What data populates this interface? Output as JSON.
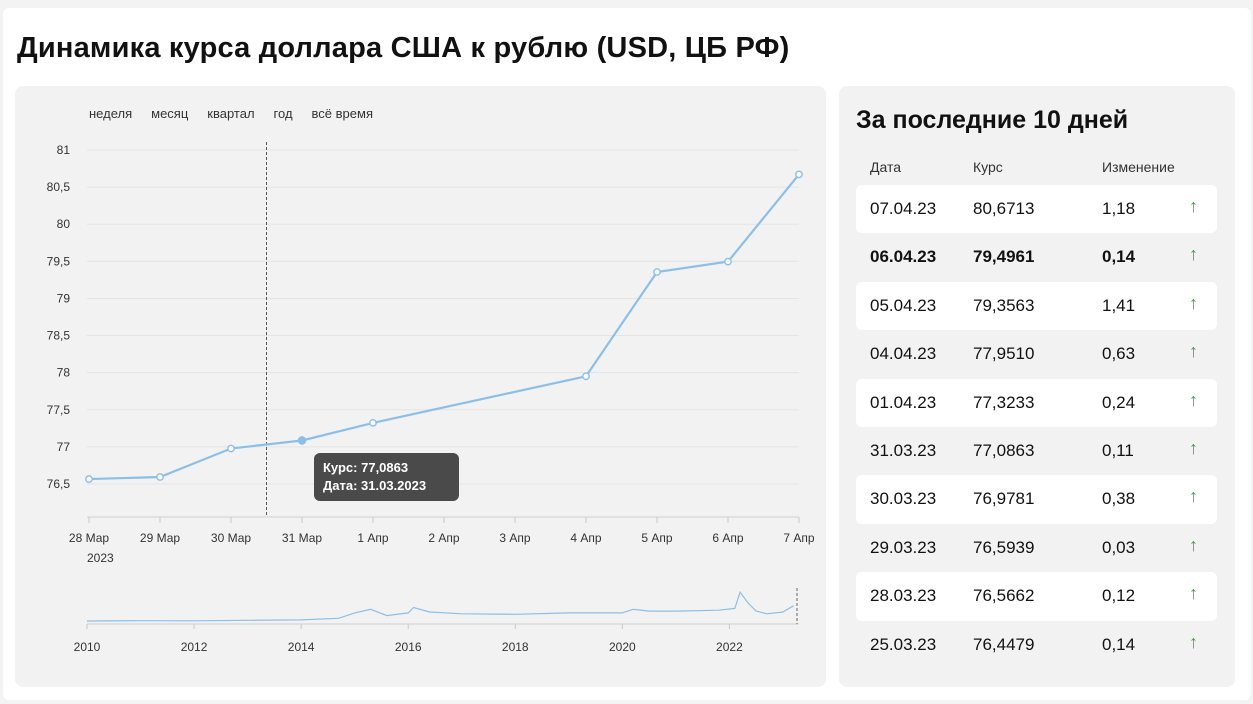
{
  "title": "Динамика курса доллара США к рублю (USD, ЦБ РФ)",
  "periods": [
    "неделя",
    "месяц",
    "квартал",
    "год",
    "всё время"
  ],
  "chart_data": {
    "type": "line",
    "x": [
      "28 Мар",
      "29 Мар",
      "30 Мар",
      "31 Мар",
      "1 Апр",
      "4 Апр",
      "5 Апр",
      "6 Апр",
      "7 Апр"
    ],
    "x_ticks": [
      "28 Мар",
      "29 Мар",
      "30 Мар",
      "31 Мар",
      "1 Апр",
      "2 Апр",
      "3 Апр",
      "4 Апр",
      "5 Апр",
      "6 Апр",
      "7 Апр"
    ],
    "x_year_label": "2023",
    "values": [
      76.5662,
      76.5939,
      76.9781,
      77.0863,
      77.3233,
      77.951,
      79.3563,
      79.4961,
      80.6713
    ],
    "y_ticks": [
      "81",
      "80,5",
      "80",
      "79,5",
      "79",
      "78,5",
      "78",
      "77,5",
      "77",
      "76,5"
    ],
    "ylim": [
      76.5,
      81
    ],
    "line_color": "#8cbfe8",
    "highlight": {
      "x": "31 Мар",
      "value": 77.0863
    },
    "overview": {
      "x_ticks": [
        "2010",
        "2012",
        "2014",
        "2016",
        "2018",
        "2020",
        "2022"
      ],
      "xlim": [
        2010,
        2023.3
      ]
    }
  },
  "tooltip": {
    "rate": "Курс: 77,0863",
    "date": "Дата: 31.03.2023"
  },
  "table": {
    "title": "За последние 10 дней",
    "headers": [
      "Дата",
      "Курс",
      "Изменение"
    ],
    "arrow_icon": "↑",
    "arrow_color": "#2eaa3a",
    "rows": [
      {
        "date": "07.04.23",
        "rate": "80,6713",
        "change": "1,18"
      },
      {
        "date": "06.04.23",
        "rate": "79,4961",
        "change": "0,14"
      },
      {
        "date": "05.04.23",
        "rate": "79,3563",
        "change": "1,41"
      },
      {
        "date": "04.04.23",
        "rate": "77,9510",
        "change": "0,63"
      },
      {
        "date": "01.04.23",
        "rate": "77,3233",
        "change": "0,24"
      },
      {
        "date": "31.03.23",
        "rate": "77,0863",
        "change": "0,11"
      },
      {
        "date": "30.03.23",
        "rate": "76,9781",
        "change": "0,38"
      },
      {
        "date": "29.03.23",
        "rate": "76,5939",
        "change": "0,03"
      },
      {
        "date": "28.03.23",
        "rate": "76,5662",
        "change": "0,12"
      },
      {
        "date": "25.03.23",
        "rate": "76,4479",
        "change": "0,14"
      }
    ]
  }
}
